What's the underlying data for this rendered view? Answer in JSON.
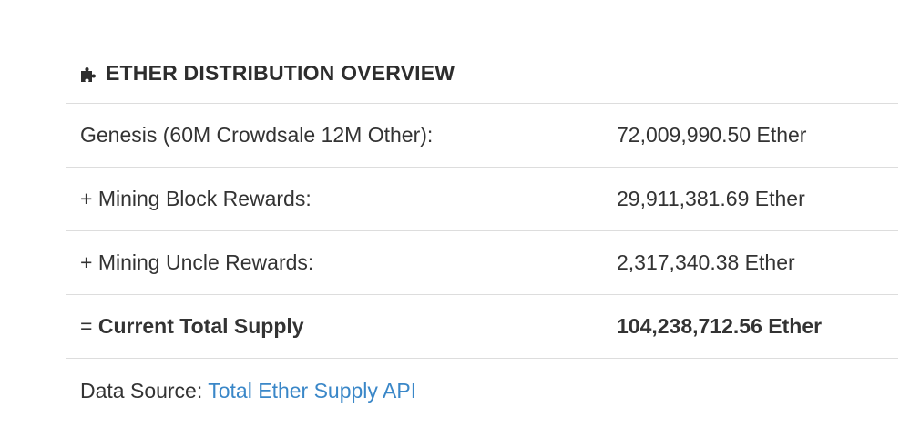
{
  "panel": {
    "icon": "puzzle-piece-icon",
    "title": "ETHER DISTRIBUTION OVERVIEW"
  },
  "rows": [
    {
      "label_prefix": "",
      "label": "Genesis (60M Crowdsale 12M Other):",
      "value": "72,009,990.50 Ether",
      "bold": false
    },
    {
      "label_prefix": "",
      "label": "+ Mining Block Rewards:",
      "value": "29,911,381.69 Ether",
      "bold": false
    },
    {
      "label_prefix": "",
      "label": "+ Mining Uncle Rewards:",
      "value": "2,317,340.38 Ether",
      "bold": false
    },
    {
      "label_prefix": "= ",
      "label": "Current Total Supply",
      "value": "104,238,712.56 Ether",
      "bold": true
    }
  ],
  "footer": {
    "prefix": "Data Source:",
    "link_text": "Total Ether Supply API"
  },
  "colors": {
    "link": "#3a87c8",
    "border": "#dddddd",
    "text": "#333333"
  }
}
